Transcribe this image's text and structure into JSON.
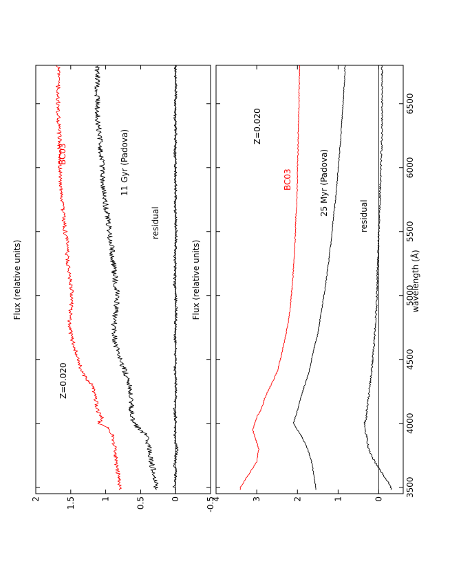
{
  "figure": {
    "orientation": "rotated 90 degrees counter-clockwise (landscape figure on portrait page)",
    "xlabel": "wavelength (Å)",
    "ylabel": "Flux (relative units)",
    "x_ticks": [
      "3500",
      "4000",
      "4500",
      "5000",
      "5500",
      "6000",
      "6500"
    ]
  },
  "colors": {
    "model": "#ff0000",
    "observed": "#000000",
    "residual": "#000000"
  },
  "chart_data": [
    {
      "type": "line",
      "panel": "top",
      "xlim": [
        3450,
        6800
      ],
      "ylim": [
        -0.5,
        2
      ],
      "y_ticks": [
        "-0.5",
        "0",
        "0.5",
        "1",
        "1.5",
        "2"
      ],
      "annotations": {
        "metallicity": "Z=0.020",
        "model": "BC03",
        "observed": "11 Gyr (Padova)",
        "residual": "residual"
      },
      "x": [
        3500,
        3600,
        3700,
        3800,
        3900,
        3950,
        4000,
        4050,
        4100,
        4200,
        4300,
        4400,
        4500,
        4600,
        4700,
        4800,
        4900,
        5000,
        5100,
        5200,
        5300,
        5400,
        5500,
        5600,
        5700,
        5800,
        5900,
        6000,
        6100,
        6200,
        6300,
        6400,
        6500,
        6600,
        6700,
        6800
      ],
      "series": [
        {
          "name": "BC03",
          "values": [
            0.8,
            0.82,
            0.85,
            0.87,
            0.9,
            0.93,
            1.1,
            1.05,
            1.12,
            1.15,
            1.2,
            1.35,
            1.38,
            1.45,
            1.5,
            1.52,
            1.5,
            1.48,
            1.5,
            1.53,
            1.55,
            1.55,
            1.58,
            1.6,
            1.62,
            1.63,
            1.66,
            1.65,
            1.66,
            1.66,
            1.67,
            1.68,
            1.68,
            1.68,
            1.68,
            1.68
          ]
        },
        {
          "name": "11 Gyr (Padova)",
          "values": [
            0.28,
            0.3,
            0.35,
            0.38,
            0.42,
            0.5,
            0.6,
            0.62,
            0.63,
            0.64,
            0.66,
            0.72,
            0.8,
            0.85,
            0.88,
            0.88,
            0.85,
            0.83,
            0.86,
            0.88,
            0.9,
            0.92,
            0.95,
            0.97,
            1.0,
            1.02,
            1.05,
            1.05,
            1.06,
            1.08,
            1.1,
            1.12,
            1.12,
            1.12,
            1.12,
            1.12
          ]
        },
        {
          "name": "residual",
          "values": [
            0.02,
            0.0,
            0.01,
            -0.02,
            0.02,
            0.0,
            0.01,
            0.0,
            0.02,
            0.0,
            -0.01,
            0.01,
            0.0,
            0.0,
            0.01,
            0.0,
            -0.01,
            0.0,
            0.02,
            0.0,
            0.01,
            0.0,
            -0.01,
            0.0,
            0.01,
            0.0,
            0.0,
            0.0,
            0.01,
            0.0,
            0.0,
            0.01,
            0.0,
            0.0,
            0.0,
            0.0
          ]
        }
      ]
    },
    {
      "type": "line",
      "panel": "bottom",
      "xlim": [
        3450,
        6800
      ],
      "ylim": [
        -0.6,
        4
      ],
      "y_ticks": [
        "0",
        "1",
        "2",
        "3",
        "4"
      ],
      "annotations": {
        "metallicity": "Z=0.020",
        "model": "BC03",
        "observed": "25 Myr (Padova)",
        "residual": "residual"
      },
      "x": [
        3500,
        3600,
        3700,
        3800,
        3900,
        3950,
        4000,
        4050,
        4100,
        4200,
        4300,
        4400,
        4500,
        4600,
        4700,
        4800,
        4900,
        5000,
        5100,
        5200,
        5300,
        5400,
        5500,
        5600,
        5700,
        5800,
        5900,
        6000,
        6100,
        6200,
        6300,
        6400,
        6500,
        6600,
        6700,
        6800
      ],
      "series": [
        {
          "name": "BC03",
          "values": [
            3.4,
            3.2,
            3.0,
            2.95,
            3.05,
            3.1,
            3.05,
            3.0,
            2.9,
            2.8,
            2.65,
            2.5,
            2.42,
            2.35,
            2.28,
            2.22,
            2.18,
            2.15,
            2.12,
            2.1,
            2.08,
            2.06,
            2.05,
            2.04,
            2.02,
            2.01,
            2.0,
            2.0,
            1.99,
            1.98,
            1.98,
            1.97,
            1.96,
            1.96,
            1.95,
            1.95
          ]
        },
        {
          "name": "25 Myr (Padova)",
          "values": [
            1.55,
            1.6,
            1.65,
            1.75,
            1.9,
            2.0,
            2.1,
            2.05,
            2.0,
            1.92,
            1.82,
            1.72,
            1.65,
            1.58,
            1.5,
            1.45,
            1.4,
            1.35,
            1.3,
            1.26,
            1.22,
            1.18,
            1.15,
            1.12,
            1.08,
            1.05,
            1.02,
            1.0,
            0.97,
            0.94,
            0.92,
            0.9,
            0.88,
            0.86,
            0.84,
            0.83
          ]
        },
        {
          "name": "residual",
          "values": [
            -0.3,
            -0.1,
            0.1,
            0.25,
            0.3,
            0.35,
            0.35,
            0.3,
            0.3,
            0.25,
            0.22,
            0.18,
            0.15,
            0.12,
            0.1,
            0.08,
            0.06,
            0.05,
            0.04,
            0.03,
            0.02,
            0.01,
            0.0,
            -0.01,
            -0.02,
            -0.03,
            -0.04,
            -0.05,
            -0.06,
            -0.07,
            -0.08,
            -0.08,
            -0.08,
            -0.08,
            -0.08,
            -0.08
          ]
        }
      ]
    }
  ]
}
